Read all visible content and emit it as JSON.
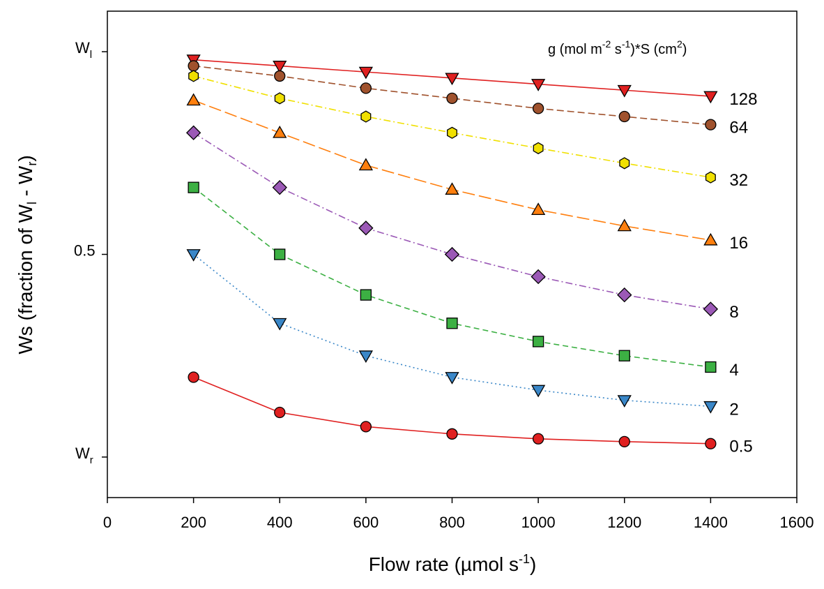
{
  "chart_data": {
    "type": "line",
    "title": "",
    "xlabel": "Flow rate (µmol s",
    "xlabel_sup": "-1",
    "xlabel_end": ")",
    "ylabel": "Ws (fraction of W",
    "ylabel_sub1": "l",
    "ylabel_mid": " - W",
    "ylabel_sub2": "r",
    "ylabel_end": ")",
    "xlim": [
      0,
      1600
    ],
    "ylim": [
      -0.1,
      1.1
    ],
    "x_ticks": [
      0,
      200,
      400,
      600,
      800,
      1000,
      1200,
      1400,
      1600
    ],
    "y_ticks": [
      {
        "value": 1.0,
        "label": "W",
        "sub": "l"
      },
      {
        "value": 0.5,
        "label": "0.5",
        "sub": ""
      },
      {
        "value": 0.0,
        "label": "W",
        "sub": "r"
      }
    ],
    "grid": false,
    "legend": {
      "position": "top-right",
      "title_parts": [
        "g (mol m",
        "-2",
        " s",
        "-1",
        ")*S (cm",
        "2",
        ")"
      ]
    },
    "x": [
      200,
      400,
      600,
      800,
      1000,
      1200,
      1400
    ],
    "series": [
      {
        "name": "128",
        "marker": "triangle-down",
        "color": "#e02020",
        "dash": "",
        "values": [
          0.98,
          0.965,
          0.95,
          0.935,
          0.92,
          0.905,
          0.89
        ]
      },
      {
        "name": "64",
        "marker": "circle",
        "color": "#a0522d",
        "dash": "10,5",
        "values": [
          0.965,
          0.94,
          0.91,
          0.885,
          0.86,
          0.84,
          0.82
        ]
      },
      {
        "name": "32",
        "marker": "hexagon",
        "color": "#f0e000",
        "dash": "10,4,2,4",
        "values": [
          0.94,
          0.885,
          0.84,
          0.8,
          0.762,
          0.725,
          0.69
        ]
      },
      {
        "name": "16",
        "marker": "triangle-up",
        "color": "#ff7f0e",
        "dash": "18,6",
        "values": [
          0.88,
          0.8,
          0.72,
          0.66,
          0.61,
          0.57,
          0.535
        ]
      },
      {
        "name": "8",
        "marker": "diamond",
        "color": "#9b59b6",
        "dash": "10,4,2,4",
        "values": [
          0.8,
          0.665,
          0.565,
          0.5,
          0.445,
          0.4,
          0.365
        ]
      },
      {
        "name": "4",
        "marker": "square",
        "color": "#3cb043",
        "dash": "8,5",
        "values": [
          0.665,
          0.5,
          0.4,
          0.33,
          0.285,
          0.25,
          0.222
        ]
      },
      {
        "name": "2",
        "marker": "triangle-down",
        "color": "#3a87c8",
        "dash": "2,4",
        "values": [
          0.5,
          0.33,
          0.25,
          0.197,
          0.165,
          0.14,
          0.125
        ]
      },
      {
        "name": "0.5",
        "marker": "circle",
        "color": "#e02020",
        "dash": "",
        "values": [
          0.197,
          0.11,
          0.075,
          0.057,
          0.045,
          0.038,
          0.033
        ]
      }
    ]
  }
}
